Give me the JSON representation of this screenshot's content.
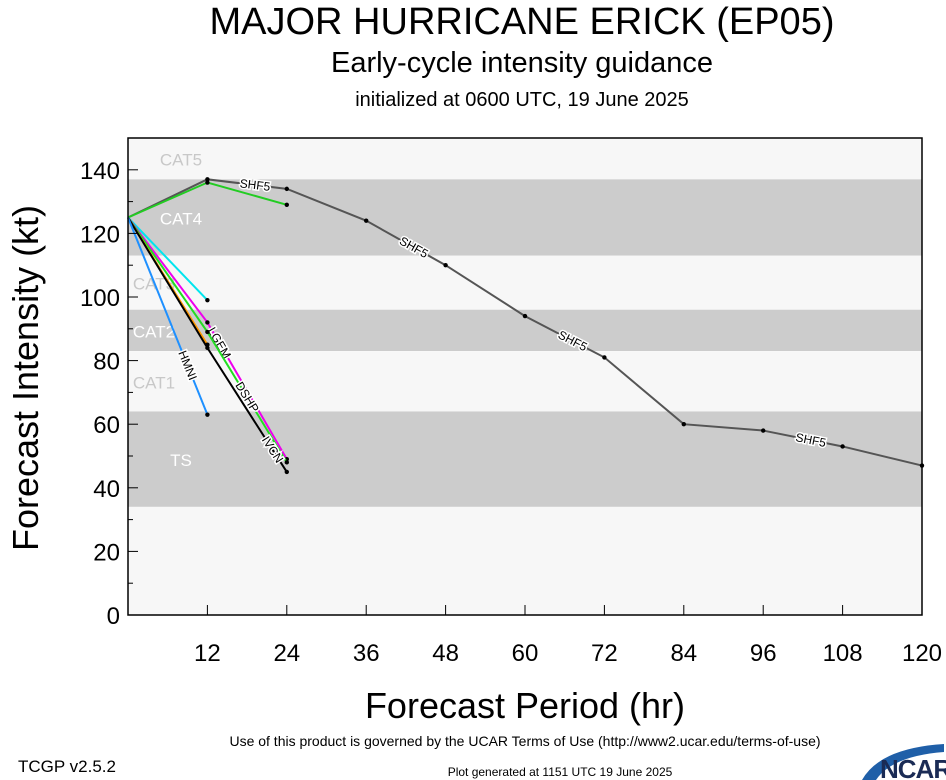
{
  "chart_data": {
    "type": "line",
    "title": "MAJOR HURRICANE ERICK (EP05)",
    "subtitle": "Early-cycle intensity guidance",
    "subtitle2": "initialized at 0600 UTC, 19 June 2025",
    "xlabel": "Forecast Period (hr)",
    "ylabel": "Forecast Intensity (kt)",
    "xlim": [
      0,
      120
    ],
    "ylim": [
      0,
      150
    ],
    "xticks": [
      12,
      24,
      36,
      48,
      60,
      72,
      84,
      96,
      108,
      120
    ],
    "yticks": [
      0,
      20,
      40,
      60,
      80,
      100,
      120,
      140
    ],
    "bands": [
      {
        "label": "CAT5",
        "min": 137,
        "max": 150,
        "shade": "light"
      },
      {
        "label": "CAT4",
        "min": 113,
        "max": 136,
        "shade": "dark"
      },
      {
        "label": "CAT3",
        "min": 96,
        "max": 112,
        "shade": "light"
      },
      {
        "label": "CAT2",
        "min": 83,
        "max": 95,
        "shade": "dark"
      },
      {
        "label": "CAT1",
        "min": 64,
        "max": 82,
        "shade": "light"
      },
      {
        "label": "TS",
        "min": 34,
        "max": 63,
        "shade": "dark"
      },
      {
        "label": "",
        "min": 0,
        "max": 33,
        "shade": "light"
      }
    ],
    "series": [
      {
        "name": "SHF5",
        "color": "#555555",
        "x": [
          0,
          12,
          24,
          36,
          48,
          60,
          72,
          84,
          96,
          108,
          120
        ],
        "y": [
          125,
          137,
          134,
          124,
          110,
          94,
          81,
          60,
          58,
          53,
          47
        ]
      },
      {
        "color": "#22cc22",
        "x": [
          0,
          12,
          24
        ],
        "y": [
          125,
          136,
          129
        ]
      },
      {
        "color": "#00e5ee",
        "x": [
          0,
          12
        ],
        "y": [
          125,
          99
        ]
      },
      {
        "name": "LGEM",
        "color": "#ee00ee",
        "x": [
          0,
          12,
          24
        ],
        "y": [
          125,
          92,
          49
        ]
      },
      {
        "name": "DSHP",
        "color": "#22dd22",
        "x": [
          0,
          12,
          24
        ],
        "y": [
          125,
          89,
          48
        ]
      },
      {
        "color": "#ff9900",
        "x": [
          0,
          12
        ],
        "y": [
          125,
          85
        ]
      },
      {
        "name": "IVCN",
        "color": "#000000",
        "x": [
          0,
          12,
          24
        ],
        "y": [
          125,
          84,
          45
        ]
      },
      {
        "name": "HMNI",
        "color": "#1e90ff",
        "x": [
          0,
          12
        ],
        "y": [
          125,
          63
        ]
      }
    ]
  },
  "footer": {
    "version": "TCGP v2.5.2",
    "terms": "Use of this product is governed by the UCAR Terms of Use (http://www2.ucar.edu/terms-of-use)",
    "generated": "Plot generated at 1151 UTC   19 June 2025",
    "logo": "NCAR"
  }
}
